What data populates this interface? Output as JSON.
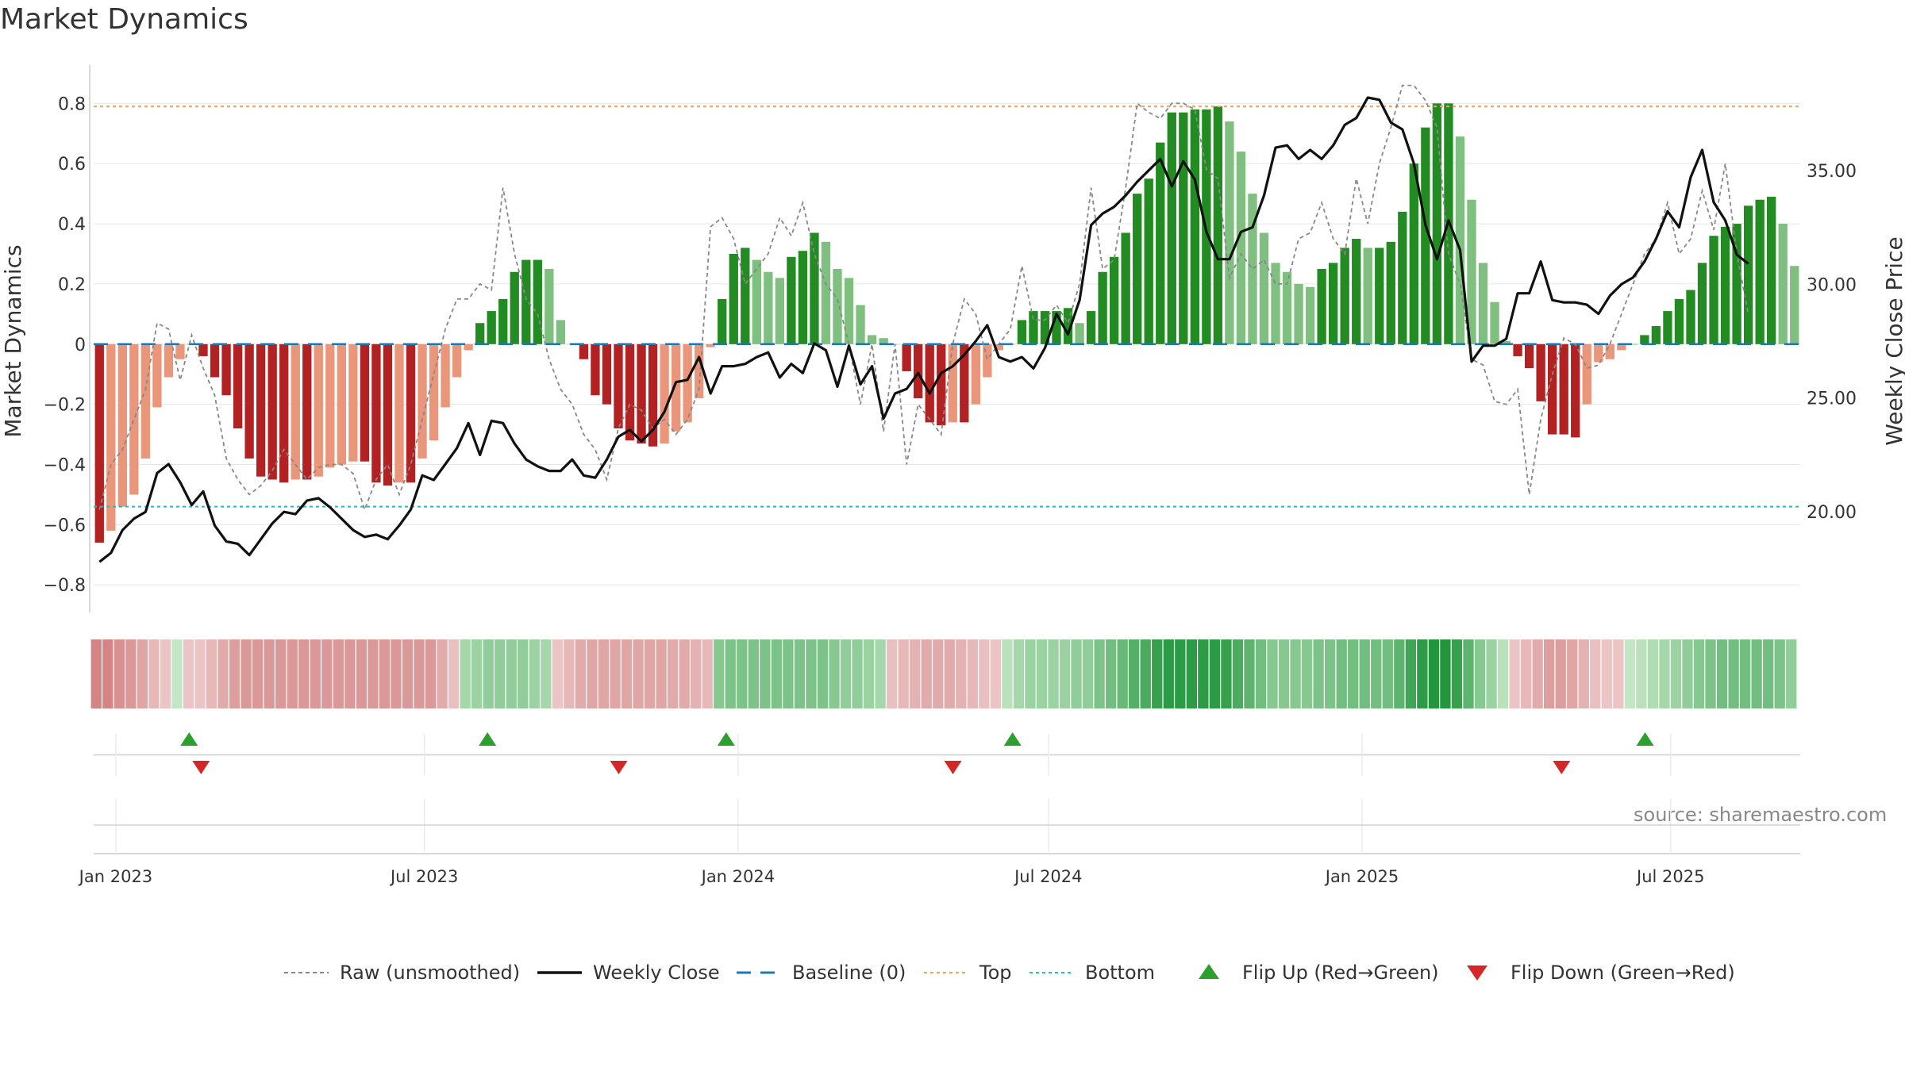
{
  "page": {
    "title": "Market Dynamics",
    "source": "source: sharemaestro.com"
  },
  "chart_data": {
    "type": "bar",
    "title": "Market Dynamics",
    "ylabel": "Market Dynamics",
    "ylabel_right": "Weekly Close Price",
    "ylim": [
      -0.86,
      0.88
    ],
    "ylim_right": [
      16.0,
      39.0
    ],
    "yticks": [
      -0.8,
      -0.6,
      -0.4,
      -0.2,
      0,
      0.2,
      0.4,
      0.6,
      0.8
    ],
    "ytick_labels": [
      "−0.8",
      "−0.6",
      "−0.4",
      "−0.2",
      "0",
      "0.2",
      "0.4",
      "0.6",
      "0.8"
    ],
    "yticks_right": [
      20,
      25,
      30,
      35
    ],
    "ytick_labels_right": [
      "20.00",
      "25.00",
      "30.00",
      "35.00"
    ],
    "x_start": "2022-12-19",
    "x_end": "2025-09-15",
    "xticks": [
      "2023-01-01",
      "2023-07-01",
      "2024-01-01",
      "2024-07-01",
      "2025-01-01",
      "2025-07-01"
    ],
    "xtick_labels": [
      "Jan 2023",
      "Jul 2023",
      "Jan 2024",
      "Jul 2024",
      "Jan 2025",
      "Jul 2025"
    ],
    "top_line": 0.79,
    "bottom_line": -0.54,
    "baseline": 0,
    "grid": true,
    "legend_position": "bottom-center",
    "legend": [
      {
        "label": "Raw (unsmoothed)",
        "style": "dotted-gray"
      },
      {
        "label": "Weekly Close",
        "style": "solid-black"
      },
      {
        "label": "Baseline (0)",
        "style": "dashed-blue"
      },
      {
        "label": "Top",
        "style": "dotted-orange"
      },
      {
        "label": "Bottom",
        "style": "dotted-cyan"
      },
      {
        "label": "Flip Up (Red→Green)",
        "style": "triangle-up-green"
      },
      {
        "label": "Flip Down (Green→Red)",
        "style": "triangle-down-red"
      }
    ],
    "colors": {
      "strong_green": "#228B22",
      "light_green": "#7FBF7F",
      "strong_red": "#B22222",
      "light_red": "#E9967A",
      "raw": "#888888",
      "price": "#111111",
      "baseline": "#1F77B4",
      "top": "#F4A460",
      "bottom": "#20C0C0",
      "flip_up": "#2CA02C",
      "flip_down": "#D62728"
    },
    "series": [
      {
        "name": "Market Dynamics",
        "values": [
          -0.66,
          -0.62,
          -0.54,
          -0.5,
          -0.38,
          -0.21,
          -0.11,
          -0.05,
          0.0,
          -0.04,
          -0.11,
          -0.17,
          -0.28,
          -0.38,
          -0.44,
          -0.45,
          -0.46,
          -0.45,
          -0.45,
          -0.44,
          -0.41,
          -0.4,
          -0.39,
          -0.39,
          -0.46,
          -0.47,
          -0.46,
          -0.46,
          -0.38,
          -0.32,
          -0.21,
          -0.11,
          -0.02,
          0.07,
          0.11,
          0.15,
          0.24,
          0.28,
          0.28,
          0.25,
          0.08,
          0.0,
          -0.05,
          -0.17,
          -0.2,
          -0.28,
          -0.32,
          -0.33,
          -0.34,
          -0.33,
          -0.29,
          -0.26,
          -0.18,
          -0.01,
          0.15,
          0.3,
          0.32,
          0.28,
          0.24,
          0.22,
          0.29,
          0.31,
          0.37,
          0.34,
          0.25,
          0.22,
          0.13,
          0.03,
          0.02,
          0.0,
          -0.09,
          -0.18,
          -0.26,
          -0.27,
          -0.26,
          -0.26,
          -0.2,
          -0.11,
          -0.02,
          0.0,
          0.08,
          0.11,
          0.11,
          0.11,
          0.12,
          0.07,
          0.11,
          0.24,
          0.29,
          0.37,
          0.5,
          0.55,
          0.67,
          0.77,
          0.77,
          0.78,
          0.78,
          0.79,
          0.74,
          0.64,
          0.5,
          0.37,
          0.27,
          0.24,
          0.2,
          0.19,
          0.25,
          0.27,
          0.32,
          0.35,
          0.32,
          0.32,
          0.34,
          0.44,
          0.6,
          0.72,
          0.8,
          0.8,
          0.69,
          0.48,
          0.27,
          0.14,
          0.01,
          -0.04,
          -0.08,
          -0.19,
          -0.3,
          -0.3,
          -0.31,
          -0.2,
          -0.06,
          -0.05,
          -0.02,
          0.0,
          0.03,
          0.06,
          0.11,
          0.15,
          0.18,
          0.27,
          0.36,
          0.39,
          0.4,
          0.46,
          0.48,
          0.49,
          0.4,
          0.26
        ]
      },
      {
        "name": "Raw (unsmoothed)",
        "values": [
          -0.55,
          -0.4,
          -0.35,
          -0.25,
          -0.15,
          0.07,
          0.05,
          -0.12,
          0.03,
          -0.08,
          -0.17,
          -0.38,
          -0.45,
          -0.5,
          -0.47,
          -0.42,
          -0.35,
          -0.4,
          -0.45,
          -0.41,
          -0.4,
          -0.4,
          -0.43,
          -0.55,
          -0.45,
          -0.4,
          -0.5,
          -0.4,
          -0.25,
          -0.1,
          0.05,
          0.15,
          0.15,
          0.2,
          0.18,
          0.52,
          0.3,
          0.15,
          0.1,
          -0.05,
          -0.15,
          -0.2,
          -0.3,
          -0.35,
          -0.45,
          -0.28,
          -0.2,
          -0.22,
          -0.28,
          -0.25,
          -0.3,
          -0.25,
          -0.15,
          0.39,
          0.42,
          0.35,
          0.2,
          0.25,
          0.3,
          0.42,
          0.36,
          0.47,
          0.3,
          0.2,
          0.15,
          0.0,
          -0.2,
          0.0,
          -0.29,
          0.0,
          -0.4,
          -0.2,
          -0.25,
          -0.3,
          0.0,
          0.15,
          0.1,
          -0.05,
          0.0,
          0.05,
          0.26,
          0.08,
          0.08,
          0.13,
          0.07,
          0.2,
          0.52,
          0.25,
          0.28,
          0.52,
          0.8,
          0.77,
          0.75,
          0.8,
          0.8,
          0.78,
          0.58,
          0.55,
          0.22,
          0.3,
          0.25,
          0.28,
          0.2,
          0.2,
          0.35,
          0.37,
          0.47,
          0.35,
          0.3,
          0.55,
          0.4,
          0.6,
          0.72,
          0.86,
          0.86,
          0.81,
          0.72,
          0.3,
          0.2,
          -0.05,
          -0.07,
          -0.19,
          -0.2,
          -0.15,
          -0.5,
          -0.25,
          -0.1,
          0.02,
          0.0,
          -0.08,
          -0.07,
          0.0,
          0.1,
          0.2,
          0.3,
          0.35,
          0.47,
          0.3,
          0.35,
          0.51,
          0.38,
          0.6,
          0.3,
          0.1
        ]
      },
      {
        "name": "Weekly Close",
        "values": [
          17.8,
          18.2,
          19.2,
          19.7,
          20.0,
          21.7,
          22.1,
          21.3,
          20.3,
          20.9,
          19.4,
          18.7,
          18.6,
          18.1,
          18.8,
          19.5,
          20.0,
          19.9,
          20.5,
          20.6,
          20.2,
          19.7,
          19.2,
          18.9,
          19.0,
          18.8,
          19.4,
          20.1,
          21.6,
          21.4,
          22.1,
          22.8,
          23.9,
          22.5,
          24.0,
          23.9,
          23.0,
          22.3,
          22.0,
          21.8,
          21.8,
          22.3,
          21.6,
          21.5,
          22.3,
          23.3,
          23.6,
          23.1,
          23.6,
          24.4,
          25.7,
          25.8,
          26.8,
          25.2,
          26.4,
          26.4,
          26.5,
          26.8,
          27.0,
          25.9,
          26.5,
          26.1,
          27.4,
          27.1,
          25.5,
          27.3,
          25.6,
          26.4,
          24.1,
          25.2,
          25.4,
          26.1,
          25.2,
          26.1,
          26.4,
          26.9,
          27.5,
          28.2,
          26.8,
          26.6,
          26.8,
          26.3,
          27.2,
          28.7,
          27.8,
          29.3,
          32.6,
          33.1,
          33.4,
          33.9,
          34.5,
          35.0,
          35.5,
          34.3,
          35.4,
          34.6,
          32.3,
          31.1,
          31.1,
          32.3,
          32.5,
          33.9,
          36.0,
          36.1,
          35.5,
          35.9,
          35.5,
          36.1,
          37.0,
          37.3,
          38.2,
          38.1,
          37.1,
          36.8,
          35.3,
          32.6,
          31.1,
          32.8,
          31.5,
          26.6,
          27.3,
          27.3,
          27.6,
          29.6,
          29.6,
          31.0,
          29.3,
          29.2,
          29.2,
          29.1,
          28.7,
          29.5,
          30.0,
          30.3,
          31.0,
          32.0,
          33.2,
          32.5,
          34.7,
          35.9,
          33.6,
          32.8,
          31.3,
          30.9
        ]
      }
    ],
    "regime_strip": [
      -0.6,
      -0.6,
      -0.5,
      -0.45,
      -0.35,
      -0.2,
      -0.1,
      0.05,
      -0.1,
      -0.1,
      -0.2,
      -0.3,
      -0.4,
      -0.45,
      -0.45,
      -0.45,
      -0.45,
      -0.45,
      -0.45,
      -0.45,
      -0.45,
      -0.45,
      -0.45,
      -0.45,
      -0.45,
      -0.45,
      -0.45,
      -0.45,
      -0.45,
      -0.45,
      -0.3,
      -0.15,
      0.2,
      0.25,
      0.3,
      0.3,
      0.3,
      0.3,
      0.25,
      0.2,
      -0.1,
      -0.2,
      -0.3,
      -0.35,
      -0.35,
      -0.35,
      -0.35,
      -0.35,
      -0.35,
      -0.35,
      -0.3,
      -0.3,
      -0.25,
      -0.2,
      0.35,
      0.4,
      0.4,
      0.4,
      0.4,
      0.4,
      0.4,
      0.4,
      0.4,
      0.4,
      0.35,
      0.3,
      0.3,
      0.25,
      0.2,
      -0.15,
      -0.2,
      -0.25,
      -0.3,
      -0.3,
      -0.3,
      -0.25,
      -0.2,
      -0.15,
      -0.1,
      0.1,
      0.2,
      0.25,
      0.25,
      0.25,
      0.25,
      0.3,
      0.3,
      0.4,
      0.45,
      0.5,
      0.6,
      0.65,
      0.75,
      0.8,
      0.8,
      0.8,
      0.8,
      0.8,
      0.75,
      0.65,
      0.55,
      0.45,
      0.35,
      0.35,
      0.35,
      0.35,
      0.4,
      0.4,
      0.45,
      0.45,
      0.45,
      0.45,
      0.45,
      0.55,
      0.7,
      0.8,
      0.85,
      0.85,
      0.75,
      0.55,
      0.35,
      0.25,
      0.1,
      -0.1,
      -0.2,
      -0.3,
      -0.4,
      -0.4,
      -0.35,
      -0.25,
      -0.15,
      -0.1,
      -0.1,
      0.05,
      0.1,
      0.15,
      0.2,
      0.25,
      0.3,
      0.35,
      0.4,
      0.45,
      0.45,
      0.45,
      0.45,
      0.45,
      0.4,
      0.3
    ],
    "flips_up": [
      "2023-02-13",
      "2023-08-07",
      "2023-12-25",
      "2024-06-10",
      "2025-06-16"
    ],
    "flips_down": [
      "2023-02-20",
      "2023-10-23",
      "2024-05-06",
      "2025-04-28"
    ]
  }
}
